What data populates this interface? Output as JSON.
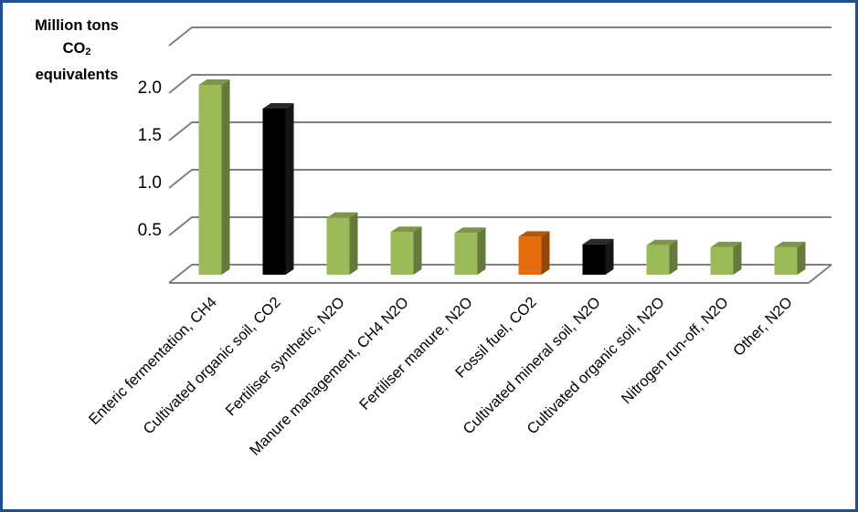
{
  "chart_data": {
    "type": "bar",
    "ylabel_lines": [
      "Million tons",
      "CO",
      "2",
      "equivalents"
    ],
    "categories": [
      "Enteric fermentation, CH4",
      "Cultivated organic soil, CO2",
      "Fertiliser synthetic, N2O",
      "Manure management, CH4 N2O",
      "Fertiliser manure, N2O",
      "Fossil fuel, CO2",
      "Cultivated mineral soil, N2O",
      "Cultivated organic soil, N2O",
      "Nitrogen run-off, N2O",
      "Other, N2O"
    ],
    "values": [
      2.0,
      1.75,
      0.6,
      0.45,
      0.44,
      0.4,
      0.32,
      0.31,
      0.29,
      0.29
    ],
    "bar_colors": [
      "#9bbb59",
      "#000000",
      "#9bbb59",
      "#9bbb59",
      "#9bbb59",
      "#e46c0a",
      "#000000",
      "#9bbb59",
      "#9bbb59",
      "#9bbb59"
    ],
    "yticks": [
      "0.5",
      "1.0",
      "1.5",
      "2.0"
    ],
    "ylim": [
      0,
      2.5
    ],
    "grid": true,
    "style": "3d-bar"
  },
  "colors": {
    "border": "#1f4e8c",
    "green": "#9bbb59",
    "orange": "#e46c0a",
    "black": "#000000",
    "grid": "#7f7f7f"
  }
}
